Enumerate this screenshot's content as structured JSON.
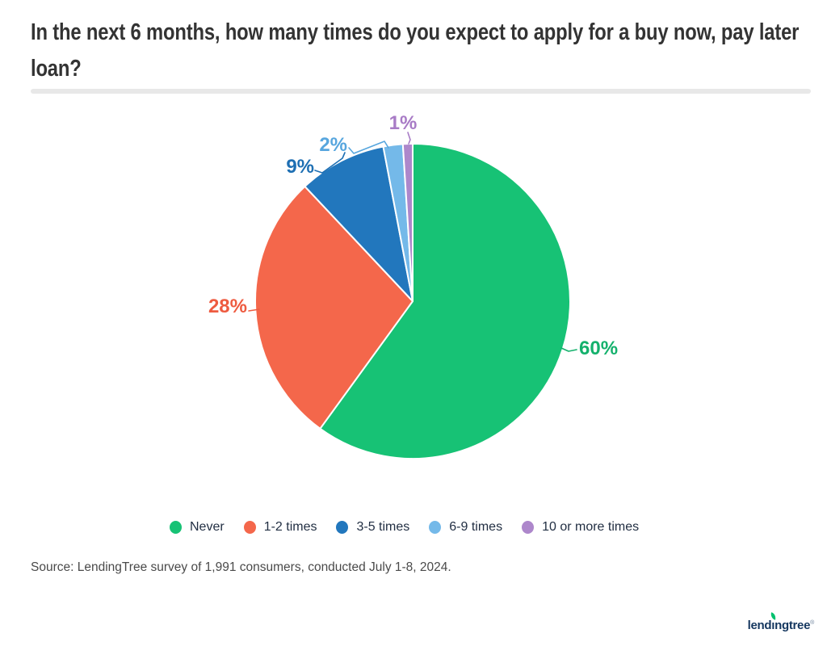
{
  "header": {
    "title_line1": "In the next 6 months, how many times do you expect to apply for a buy now, pay later",
    "title_line2": "loan?"
  },
  "chart_data": {
    "type": "pie",
    "title": "In the next 6 months, how many times do you expect to apply for a buy now, pay later loan?",
    "categories": [
      "Never",
      "1-2 times",
      "3-5 times",
      "6-9 times",
      "10 or more times"
    ],
    "values": [
      60,
      28,
      9,
      2,
      1
    ],
    "unit": "percent",
    "labels": [
      "60%",
      "28%",
      "9%",
      "2%",
      "1%"
    ],
    "colors": [
      "#17c275",
      "#f4674b",
      "#2277bd",
      "#74b9e9",
      "#ad87cb"
    ],
    "label_colors": [
      "#14b16c",
      "#ee5b40",
      "#1e6fb3",
      "#57a6de",
      "#a87bc6"
    ],
    "slice_border_color": "#ffffff",
    "start_angle_deg": 0,
    "direction": "clockwise",
    "legend_position": "bottom",
    "legend_text_color": "#222f43"
  },
  "source": "Source: LendingTree survey of 1,991 consumers, conducted July 1-8, 2024.",
  "logo": {
    "pre": "lend",
    "dotless_i": "ı",
    "post": "ngtree",
    "registered": "®",
    "text_color": "#15375f",
    "leaf_color": "#00c16e"
  }
}
